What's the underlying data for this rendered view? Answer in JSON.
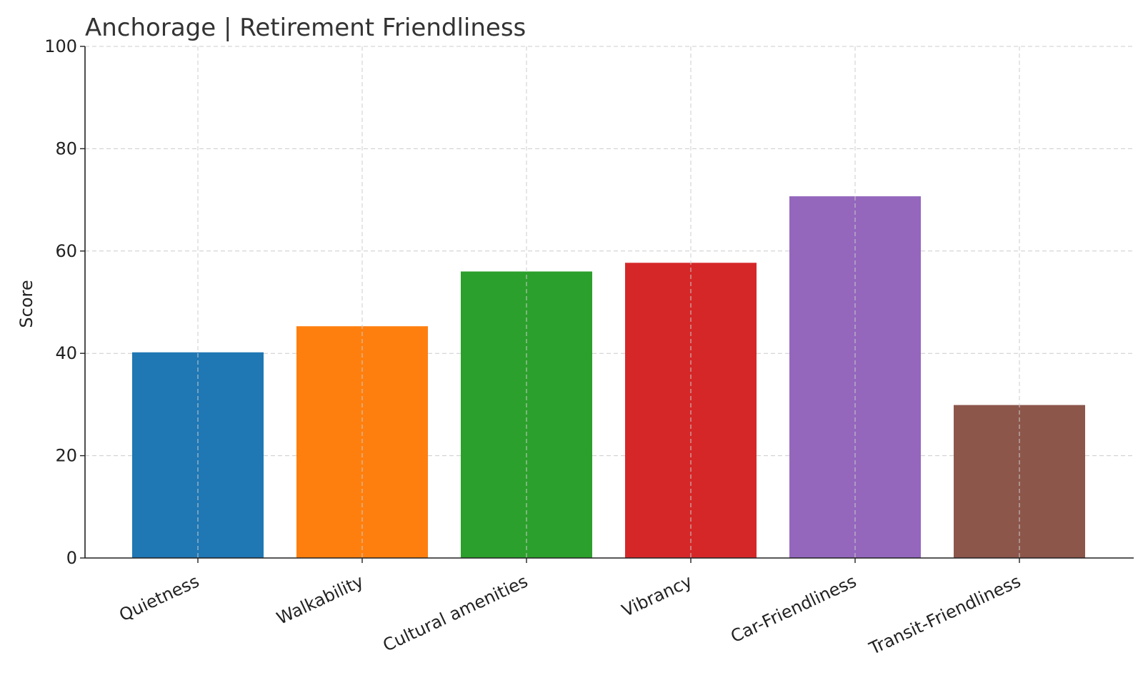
{
  "chart_data": {
    "type": "bar",
    "title": "Anchorage | Retirement Friendliness",
    "xlabel": "",
    "ylabel": "Score",
    "ylim": [
      0,
      100
    ],
    "yticks": [
      0,
      20,
      40,
      60,
      80,
      100
    ],
    "grid": true,
    "categories": [
      "Quietness",
      "Walkability",
      "Cultural amenities",
      "Vibrancy",
      "Car-Friendliness",
      "Transit-Friendliness"
    ],
    "values": [
      40.2,
      45.3,
      56.0,
      57.7,
      70.7,
      29.9
    ],
    "colors": [
      "#1f77b4",
      "#ff7f0e",
      "#2ca02c",
      "#d62728",
      "#9467bd",
      "#8c564b"
    ]
  }
}
